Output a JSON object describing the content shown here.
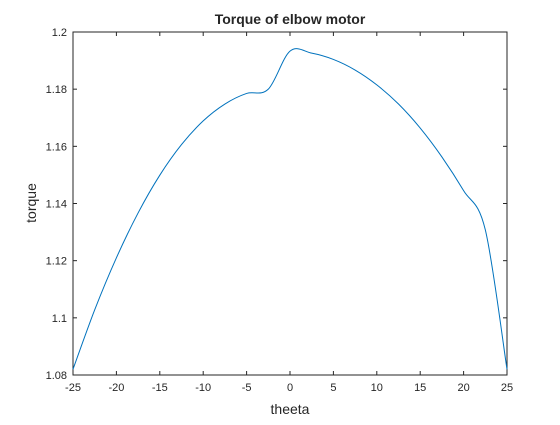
{
  "chart_data": {
    "type": "line",
    "title": "Torque of elbow motor",
    "xlabel": "theeta",
    "ylabel": "torque",
    "xlim": [
      -25,
      25
    ],
    "ylim": [
      1.08,
      1.2
    ],
    "xticks": [
      "-25",
      "-20",
      "-15",
      "-10",
      "-5",
      "0",
      "5",
      "10",
      "15",
      "20",
      "25"
    ],
    "yticks": [
      "1.08",
      "1.1",
      "1.12",
      "1.14",
      "1.16",
      "1.18",
      "1.2"
    ],
    "grid": false,
    "series": [
      {
        "color": "#0072bd",
        "x": [
          -25,
          -22.5,
          -20,
          -17.5,
          -15,
          -12.5,
          -10,
          -7.5,
          -5,
          -2.5,
          0,
          2.5,
          5,
          7.5,
          10,
          12.5,
          15,
          17.5,
          20,
          22.5,
          25
        ],
        "y": [
          1.082,
          1.1028,
          1.121,
          1.1367,
          1.1499,
          1.1606,
          1.1689,
          1.1748,
          1.1785,
          1.18,
          1.1933,
          1.1926,
          1.1904,
          1.1867,
          1.1815,
          1.1748,
          1.1664,
          1.1563,
          1.1445,
          1.1308,
          1.082
        ]
      }
    ]
  }
}
